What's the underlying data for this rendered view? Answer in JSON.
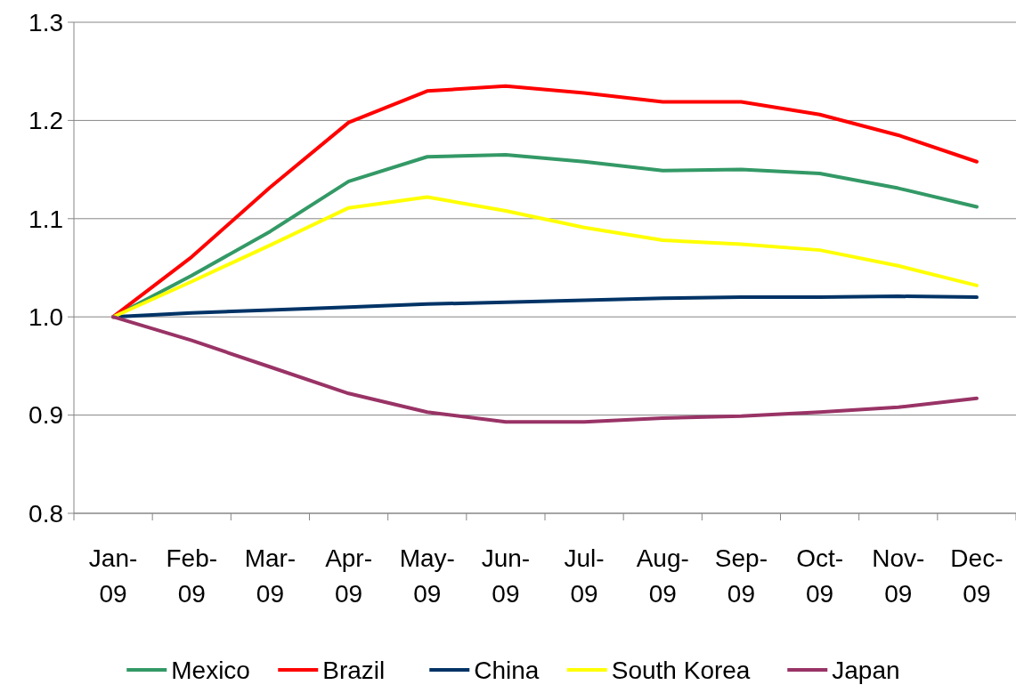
{
  "chart_data": {
    "type": "line",
    "categories": [
      "Jan-09",
      "Feb-09",
      "Mar-09",
      "Apr-09",
      "May-09",
      "Jun-09",
      "Jul-09",
      "Aug-09",
      "Sep-09",
      "Oct-09",
      "Nov-09",
      "Dec-09"
    ],
    "series": [
      {
        "name": "Mexico",
        "color": "#339966",
        "values": [
          1.0,
          1.042,
          1.087,
          1.138,
          1.163,
          1.165,
          1.158,
          1.149,
          1.15,
          1.146,
          1.131,
          1.112
        ]
      },
      {
        "name": "Brazil",
        "color": "#ff0000",
        "values": [
          1.0,
          1.061,
          1.132,
          1.198,
          1.23,
          1.235,
          1.228,
          1.219,
          1.219,
          1.206,
          1.185,
          1.158
        ]
      },
      {
        "name": "China",
        "color": "#003366",
        "values": [
          1.0,
          1.004,
          1.007,
          1.01,
          1.013,
          1.015,
          1.017,
          1.019,
          1.02,
          1.02,
          1.021,
          1.02
        ]
      },
      {
        "name": "South Korea",
        "color": "#ffff00",
        "values": [
          1.0,
          1.036,
          1.073,
          1.111,
          1.122,
          1.108,
          1.091,
          1.078,
          1.074,
          1.068,
          1.052,
          1.032
        ]
      },
      {
        "name": "Japan",
        "color": "#993366",
        "values": [
          1.0,
          0.976,
          0.949,
          0.922,
          0.903,
          0.893,
          0.893,
          0.897,
          0.899,
          0.903,
          0.908,
          0.917
        ]
      }
    ],
    "ylim": [
      0.8,
      1.3
    ],
    "yticks": [
      {
        "value": 0.8,
        "label": "0.8"
      },
      {
        "value": 0.9,
        "label": "0.9"
      },
      {
        "value": 1.0,
        "label": "1.0"
      },
      {
        "value": 1.1,
        "label": "1.1"
      },
      {
        "value": 1.2,
        "label": "1.2"
      },
      {
        "value": 1.3,
        "label": "1.3"
      }
    ],
    "grid": "y",
    "legend": "bottom",
    "marker": "none",
    "line_style": "solid"
  }
}
